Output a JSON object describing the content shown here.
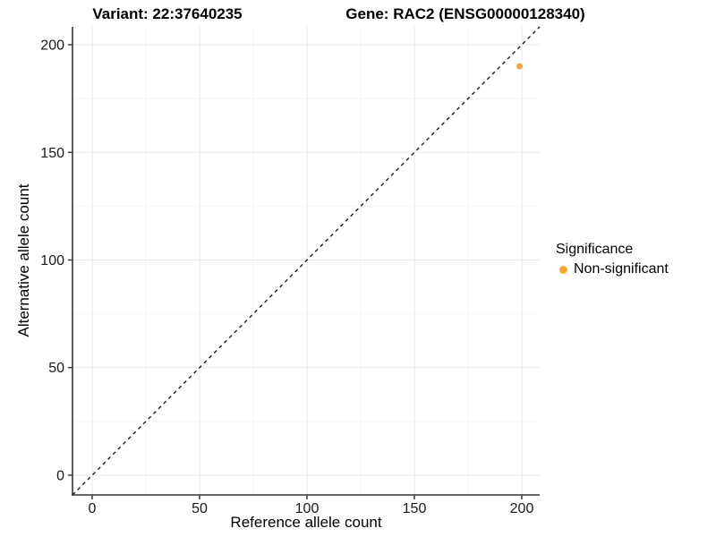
{
  "chart_data": {
    "type": "scatter",
    "title_left": "Variant: 22:37640235",
    "title_right": "Gene: RAC2 (ENSG00000128340)",
    "xlabel": "Reference allele count",
    "ylabel": "Alternative allele count",
    "xlim": [
      -9.17,
      208.33
    ],
    "ylim": [
      -9.17,
      208.33
    ],
    "x_ticks": [
      0,
      50,
      100,
      150,
      200
    ],
    "y_ticks": [
      0,
      50,
      100,
      150,
      200
    ],
    "x_minor_ticks": [
      25,
      75,
      125,
      175
    ],
    "y_minor_ticks": [
      25,
      75,
      125,
      175
    ],
    "grid": true,
    "identity_line": {
      "style": "dashed",
      "from": [
        -9.17,
        -9.17
      ],
      "to": [
        208.33,
        208.33
      ]
    },
    "series": [
      {
        "name": "Non-significant",
        "color": "#FAA43A",
        "points": [
          {
            "x": 199,
            "y": 190
          }
        ]
      }
    ],
    "legend": {
      "title": "Significance",
      "position": "right",
      "entries": [
        {
          "label": "Non-significant",
          "color": "#FAA43A"
        }
      ]
    },
    "colors": {
      "grid_major": "#E9E9E9",
      "grid_minor": "#F4F4F4",
      "axis_line": "#333333",
      "tick_mark": "#333333",
      "tick_label": "#1A1A1A",
      "identity_line": "#1A1A1A",
      "background": "#FFFFFF"
    }
  }
}
